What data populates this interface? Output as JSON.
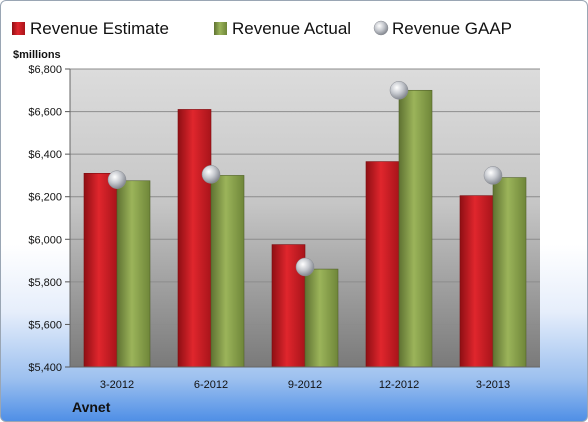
{
  "chart_data": {
    "type": "bar",
    "title": "",
    "unit_label": "$millions",
    "footer_label": "Avnet",
    "categories": [
      "3-2012",
      "6-2012",
      "9-2012",
      "12-2012",
      "3-2013"
    ],
    "ylim": [
      5400,
      6800
    ],
    "yticks": [
      5400,
      5600,
      5800,
      6000,
      6200,
      6400,
      6600,
      6800
    ],
    "ytick_labels": [
      "$5,400",
      "$5,600",
      "$5,800",
      "$6,000",
      "$6,200",
      "$6,400",
      "$6,600",
      "$6,800"
    ],
    "grid": true,
    "legend_position": "top",
    "series": [
      {
        "name": "Revenue Estimate",
        "type": "bar",
        "color": "#c4161c",
        "values": [
          6310,
          6610,
          5975,
          6365,
          6205
        ]
      },
      {
        "name": "Revenue Actual",
        "type": "bar",
        "color": "#8aa04a",
        "values": [
          6275,
          6300,
          5860,
          6700,
          6290
        ]
      },
      {
        "name": "Revenue GAAP",
        "type": "marker",
        "color": "#b9bcc4",
        "values": [
          6280,
          6305,
          5870,
          6700,
          6300
        ]
      }
    ]
  }
}
